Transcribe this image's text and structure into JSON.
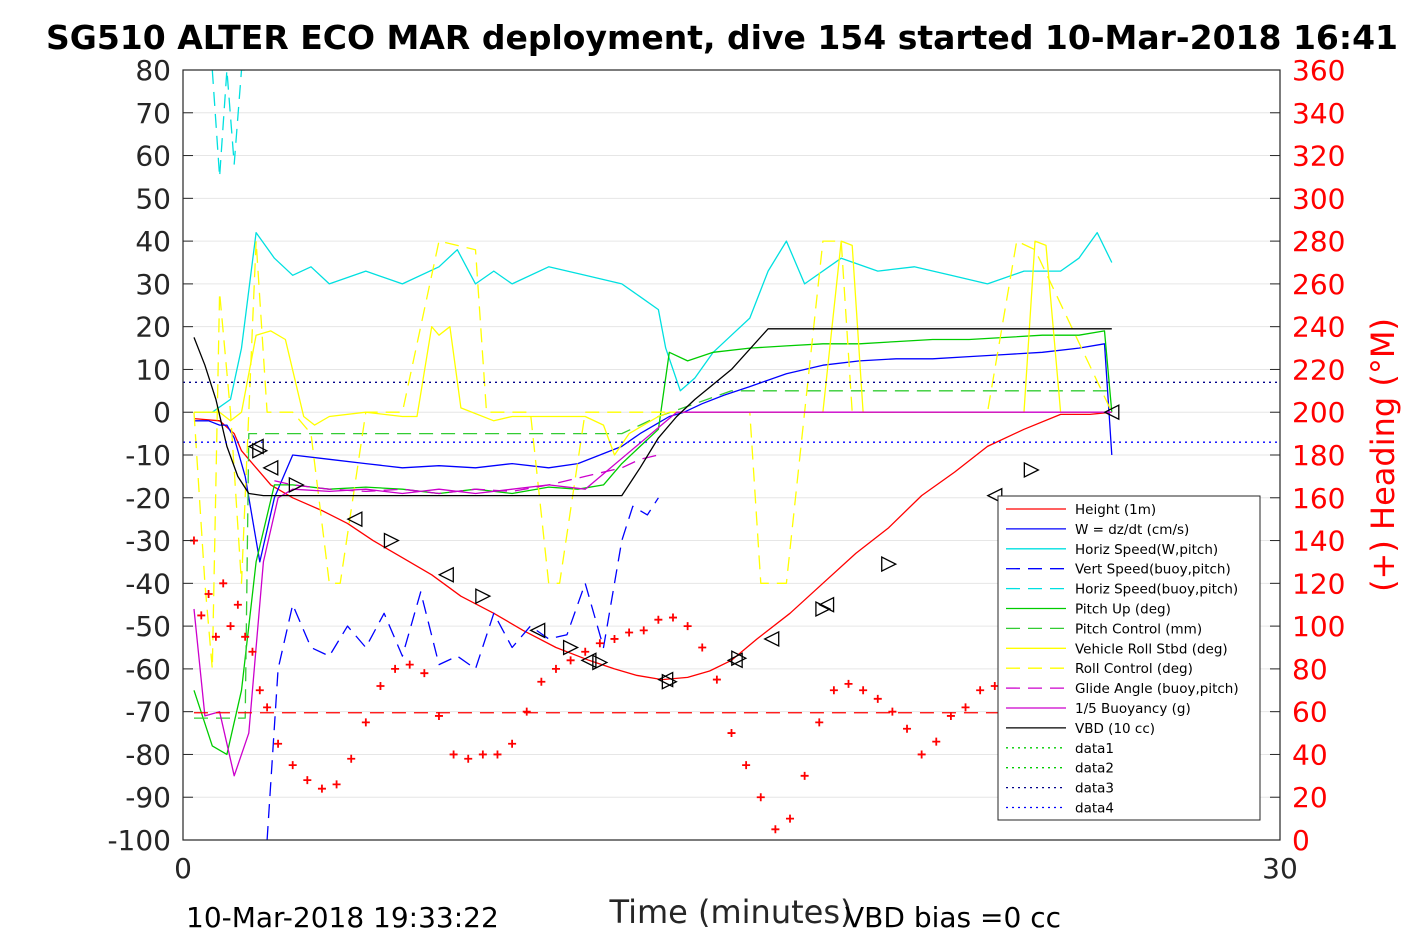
{
  "chart_data": {
    "type": "line",
    "title": "SG510 ALTER ECO MAR deployment, dive 154 started 10-Mar-2018 16:41",
    "xlabel": "Time (minutes)",
    "ylabel": "",
    "ylabel_right": "(+) Heading (°M)",
    "xlim": [
      0,
      30
    ],
    "ylim": [
      -100,
      80
    ],
    "ylim_right": [
      0,
      360
    ],
    "xticks": [
      0,
      30
    ],
    "yticks": [
      80,
      70,
      60,
      50,
      40,
      30,
      20,
      10,
      0,
      -10,
      -20,
      -30,
      -40,
      -50,
      -60,
      -70,
      -80,
      -90,
      -100
    ],
    "yticks_right": [
      360,
      340,
      320,
      300,
      280,
      260,
      240,
      220,
      200,
      180,
      160,
      140,
      120,
      100,
      80,
      60,
      40,
      20,
      0
    ],
    "grid": true,
    "legend_position": "bottom-right",
    "footer_left": "10-Mar-2018 19:33:22",
    "footer_right": "VBD bias =0 cc",
    "series": [
      {
        "name": "Height (1m)",
        "color": "#ff0000",
        "style": "solid",
        "x": [
          0.3,
          1.0,
          1.4,
          1.6,
          1.8,
          2.1,
          2.4,
          3.0,
          3.8,
          4.5,
          5.2,
          6.0,
          6.8,
          7.6,
          8.5,
          9.3,
          10.2,
          11.1,
          11.8,
          12.4,
          13.1,
          13.8,
          14.4,
          15.0,
          15.7,
          16.6,
          17.5,
          18.4,
          19.3,
          20.2,
          21.1,
          22.0,
          23.0,
          24.0,
          24.8,
          25.4
        ],
        "y": [
          -1.5,
          -2,
          -5,
          -9,
          -11,
          -14,
          -17,
          -20,
          -23,
          -26,
          -30,
          -34,
          -38,
          -43,
          -47,
          -51,
          -55,
          -58,
          -60,
          -61.5,
          -62.5,
          -62,
          -60.5,
          -58,
          -53,
          -47,
          -40,
          -33,
          -27,
          -19.5,
          -14,
          -8,
          -4,
          -0.5,
          -0.5,
          0
        ]
      },
      {
        "name": "W = dz/dt (cm/s)",
        "color": "#0000ff",
        "style": "solid",
        "x": [
          0.3,
          0.7,
          1.0,
          1.2,
          1.4,
          1.7,
          2.1,
          2.5,
          3.0,
          4.0,
          5.0,
          6.0,
          7.0,
          8.0,
          9.0,
          10.0,
          10.8,
          11.4,
          12.0,
          12.5,
          12.9,
          13.3,
          13.7,
          14.2,
          14.8,
          15.5,
          16.5,
          17.5,
          18.5,
          19.5,
          20.5,
          21.5,
          22.5,
          23.5,
          24.5,
          25.2,
          25.4
        ],
        "y": [
          -2,
          -2,
          -3,
          -3,
          -6,
          -15,
          -35,
          -20,
          -10,
          -11,
          -12,
          -13,
          -12.5,
          -13,
          -12,
          -13,
          -12,
          -10,
          -8,
          -5,
          -3,
          -1,
          0,
          2,
          4,
          6,
          9,
          11,
          12,
          12.5,
          12.5,
          13,
          13.5,
          14,
          15,
          16,
          -10
        ]
      },
      {
        "name": "Horiz Speed(W,pitch)",
        "color": "#00e0e0",
        "style": "solid",
        "x": [
          0.3,
          0.8,
          1.3,
          1.6,
          2.0,
          2.5,
          3.0,
          3.5,
          4.0,
          5.0,
          6.0,
          7.0,
          7.5,
          8.0,
          8.5,
          9.0,
          10.0,
          11.0,
          12.0,
          12.5,
          13.0,
          13.2,
          13.6,
          14.0,
          14.5,
          15.0,
          15.5,
          16.0,
          16.5,
          17.0,
          18.0,
          19.0,
          20.0,
          21.0,
          22.0,
          23.0,
          24.0,
          24.5,
          25.0,
          25.4
        ],
        "y": [
          0,
          0,
          3,
          15,
          42,
          36,
          32,
          34,
          30,
          33,
          30,
          34,
          38,
          30,
          33,
          30,
          34,
          32,
          30,
          27,
          24,
          15,
          5,
          8,
          14,
          18,
          22,
          33,
          40,
          30,
          36,
          33,
          34,
          32,
          30,
          33,
          33,
          36,
          42,
          35
        ]
      },
      {
        "name": "Vert Speed(buoy,pitch)",
        "color": "#0000ff",
        "style": "dashed",
        "x": [
          2.3,
          2.6,
          3.0,
          3.5,
          4.0,
          4.5,
          5.0,
          5.5,
          6.0,
          6.5,
          7.0,
          7.5,
          8.0,
          8.5,
          9.0,
          9.5,
          10.0,
          10.5,
          11.0,
          11.5,
          12.0,
          12.3,
          12.7,
          13.0
        ],
        "y": [
          -100,
          -60,
          -45,
          -55,
          -57,
          -50,
          -55,
          -47,
          -57,
          -42,
          -59,
          -57,
          -60,
          -47,
          -55,
          -50,
          -53,
          -52,
          -40,
          -55,
          -30,
          -22,
          -24,
          -20
        ]
      },
      {
        "name": "Horiz Speed(buoy,pitch)",
        "color": "#00e0e0",
        "style": "dashed",
        "x": [
          0.8,
          1.0,
          1.2,
          1.4,
          1.6,
          1.7
        ],
        "y": [
          80,
          55,
          80,
          58,
          80,
          80
        ]
      },
      {
        "name": "Pitch Up (deg)",
        "color": "#00cc00",
        "style": "solid",
        "x": [
          0.3,
          0.8,
          1.2,
          1.6,
          2.0,
          2.5,
          3.0,
          4.0,
          5.0,
          6.0,
          7.0,
          8.0,
          9.0,
          10.0,
          10.8,
          11.5,
          12.0,
          12.5,
          13.0,
          13.3,
          13.8,
          14.5,
          15.5,
          16.5,
          17.5,
          18.5,
          19.5,
          20.5,
          21.5,
          22.5,
          23.5,
          24.5,
          25.2,
          25.4
        ],
        "y": [
          -65,
          -78,
          -80,
          -65,
          -35,
          -17,
          -17,
          -18,
          -17.5,
          -18,
          -19,
          -18,
          -19,
          -17.5,
          -18,
          -17,
          -12,
          -8,
          -4,
          14,
          12,
          14,
          15,
          15.5,
          16,
          16,
          16.5,
          17,
          17,
          17.5,
          18,
          18,
          19,
          0
        ]
      },
      {
        "name": "Pitch Control (mm)",
        "color": "#33cc33",
        "style": "dashed",
        "x": [
          0.3,
          1.7,
          1.8,
          12.0,
          12.5,
          13.0,
          14.0,
          15.0,
          25.4
        ],
        "y": [
          -71.5,
          -71.5,
          -5,
          -5,
          -3,
          -1,
          2,
          5,
          5
        ]
      },
      {
        "name": "Vehicle Roll Stbd (deg)",
        "color": "#ffff00",
        "style": "solid",
        "x": [
          0.3,
          0.7,
          1.0,
          1.3,
          1.6,
          2.0,
          2.4,
          2.8,
          3.3,
          3.6,
          4.0,
          5.0,
          6.0,
          6.4,
          6.8,
          7.0,
          7.3,
          7.6,
          8.5,
          9.0,
          9.3,
          10.0,
          11.0,
          11.5,
          11.8,
          12.2,
          12.6,
          13.0,
          13.3,
          14.5,
          16.0,
          17.5,
          18.0,
          18.3,
          18.6,
          20.0,
          22.0,
          23.0,
          23.3,
          23.6,
          24.0,
          25.4
        ],
        "y": [
          0,
          0,
          0,
          -2,
          0,
          18,
          19,
          17,
          -1,
          -3,
          -1,
          0,
          -1,
          -1,
          20,
          18,
          20,
          1,
          -2,
          -1,
          -1,
          -1,
          -1,
          -3,
          -10,
          -5,
          -3,
          -1,
          0,
          0,
          0,
          0,
          40,
          39,
          0,
          0,
          0,
          0,
          40,
          39,
          0,
          0
        ]
      },
      {
        "name": "Roll Control (deg)",
        "color": "#ffff00",
        "style": "dashed",
        "x": [
          0.3,
          0.6,
          0.8,
          1.0,
          1.3,
          1.6,
          2.0,
          2.3,
          3.0,
          3.5,
          4.0,
          4.3,
          5.0,
          6.0,
          7.0,
          8.0,
          8.3,
          9.0,
          9.5,
          10.0,
          10.3,
          11.0,
          11.5,
          12.0,
          12.5,
          13.0,
          14.0,
          15.5,
          15.8,
          16.5,
          17.0,
          17.5,
          18.0,
          18.3,
          19.5,
          20.0,
          22.0,
          22.8,
          23.3,
          25.4
        ],
        "y": [
          0,
          -40,
          -60,
          28,
          0,
          -40,
          40,
          0,
          0,
          -5,
          -40,
          -40,
          0,
          0,
          40,
          38,
          0,
          0,
          0,
          -40,
          -40,
          0,
          0,
          0,
          0,
          0,
          0,
          0,
          -40,
          -40,
          0,
          40,
          40,
          0,
          0,
          0,
          0,
          40,
          38,
          0
        ]
      },
      {
        "name": "Glide Angle (buoy,pitch)",
        "color": "#cc00cc",
        "style": "dashed",
        "x": [
          2.5,
          3.0,
          4.0,
          5.0,
          6.0,
          7.0,
          8.0,
          9.0,
          10.0,
          11.0,
          12.0,
          12.5,
          13.0
        ],
        "y": [
          -16,
          -17,
          -18,
          -18.5,
          -18,
          -19,
          -18,
          -18.5,
          -17,
          -15,
          -13,
          -11,
          -10
        ]
      },
      {
        "name": "1/5 Buoyancy (g)",
        "color": "#cc00cc",
        "style": "solid",
        "x": [
          0.3,
          0.6,
          1.0,
          1.4,
          1.8,
          2.2,
          2.6,
          3.0,
          4.0,
          5.0,
          6.0,
          7.0,
          8.0,
          9.0,
          10.0,
          11.0,
          13.5,
          25.4
        ],
        "y": [
          -46,
          -71,
          -70,
          -85,
          -75,
          -35,
          -20,
          -18,
          -18.5,
          -18,
          -19,
          -18,
          -19,
          -18,
          -17,
          -18,
          0,
          0
        ]
      },
      {
        "name": "VBD (10 cc)",
        "color": "#000000",
        "style": "solid",
        "x": [
          0.3,
          0.6,
          0.9,
          1.2,
          1.5,
          1.8,
          2.2,
          3.0,
          5.0,
          8.0,
          11.0,
          12.0,
          12.5,
          13.0,
          13.5,
          14.0,
          15.0,
          16.0,
          18.0,
          20.0,
          22.0,
          24.0,
          25.4
        ],
        "y": [
          17.5,
          11,
          3,
          -8,
          -15,
          -19,
          -19.5,
          -19.5,
          -19.5,
          -19.5,
          -19.5,
          -19.5,
          -13,
          -6,
          -1,
          3,
          10,
          19.5,
          19.5,
          19.5,
          19.5,
          19.5,
          19.5
        ]
      },
      {
        "name": "data1",
        "color": "#00cc00",
        "style": "dotted",
        "x": [],
        "y": []
      },
      {
        "name": "data2",
        "color": "#00cc00",
        "style": "dotted",
        "x": [],
        "y": []
      },
      {
        "name": "data3",
        "color": "#00008b",
        "style": "dotted",
        "x": [
          0,
          30
        ],
        "y": [
          7,
          7
        ]
      },
      {
        "name": "data4",
        "color": "#0000ff",
        "style": "dotted",
        "x": [
          0,
          30
        ],
        "y": [
          -7,
          -7
        ]
      }
    ],
    "height_markers": {
      "x": [
        2.0,
        2.1,
        2.4,
        3.1,
        4.7,
        5.7,
        7.2,
        8.2,
        9.7,
        10.6,
        11.1,
        11.4,
        13.2,
        13.3,
        15.1,
        15.2,
        16.1,
        17.5,
        17.6,
        19.3,
        22.2,
        23.2,
        25.4
      ],
      "y": [
        -8,
        -9,
        -13,
        -17,
        -25,
        -30,
        -38,
        -43,
        -51,
        -55,
        -58,
        -58.5,
        -62.5,
        -63,
        -58,
        -57.5,
        -53,
        -46,
        -45,
        -35.5,
        -19.5,
        -13.5,
        0
      ]
    },
    "heading": {
      "name": "(+) Heading (°M)",
      "color": "#ff0000",
      "x": [
        0.3,
        0.5,
        0.7,
        0.9,
        1.1,
        1.3,
        1.5,
        1.7,
        1.9,
        2.1,
        2.3,
        2.6,
        3.0,
        3.4,
        3.8,
        4.2,
        4.6,
        5.0,
        5.4,
        5.8,
        6.2,
        6.6,
        7.0,
        7.4,
        7.8,
        8.2,
        8.6,
        9.0,
        9.4,
        9.8,
        10.2,
        10.6,
        11.0,
        11.4,
        11.8,
        12.2,
        12.6,
        13.0,
        13.4,
        13.8,
        14.2,
        14.6,
        15.0,
        15.4,
        15.8,
        16.2,
        16.6,
        17.0,
        17.4,
        17.8,
        18.2,
        18.6,
        19.0,
        19.4,
        19.8,
        20.2,
        20.6,
        21.0,
        21.4,
        21.8,
        22.2,
        22.6,
        23.0,
        23.4,
        23.8,
        24.2,
        24.6,
        25.0,
        25.2,
        25.4
      ],
      "y": [
        140,
        105,
        115,
        95,
        120,
        100,
        110,
        95,
        88,
        70,
        62,
        45,
        35,
        28,
        24,
        26,
        38,
        55,
        72,
        80,
        82,
        78,
        58,
        40,
        38,
        40,
        40,
        45,
        60,
        74,
        80,
        84,
        88,
        92,
        94,
        97,
        98,
        103,
        104,
        100,
        90,
        75,
        50,
        35,
        20,
        5,
        10,
        30,
        55,
        70,
        73,
        70,
        66,
        60,
        52,
        40,
        46,
        58,
        62,
        70,
        72,
        71,
        70,
        68,
        68,
        70,
        62,
        60,
        48,
        25
      ]
    }
  }
}
